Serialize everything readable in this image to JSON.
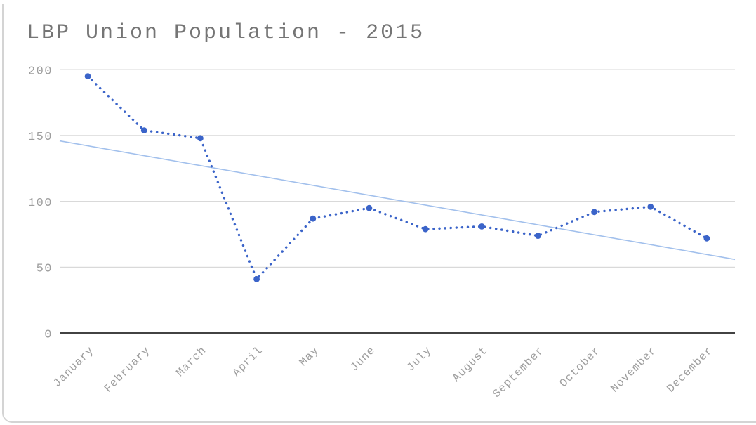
{
  "title": "LBP Union Population - 2015",
  "colors": {
    "background": "#ffffff",
    "card_border": "#d4d4d4",
    "grid": "#d9d9d9",
    "axis": "#424242",
    "tick_label": "#9e9e9e",
    "title_text": "#757575",
    "series_blue": "#3b64c9",
    "trend_blue": "#a2c0ec"
  },
  "chart_data": {
    "type": "line",
    "title": "LBP Union Population - 2015",
    "xlabel": "",
    "ylabel": "",
    "categories": [
      "January",
      "February",
      "March",
      "April",
      "May",
      "June",
      "July",
      "August",
      "September",
      "October",
      "November",
      "December"
    ],
    "series": [
      {
        "name": "Population",
        "style": "dotted",
        "color": "#3b64c9",
        "values": [
          195,
          154,
          148,
          41,
          87,
          95,
          79,
          81,
          74,
          92,
          96,
          72
        ]
      },
      {
        "name": "Trendline",
        "style": "solid",
        "color": "#a2c0ec",
        "trend": {
          "start": 146,
          "end": 56
        }
      }
    ],
    "ylim": [
      0,
      200
    ],
    "yticks": [
      0,
      50,
      100,
      150,
      200
    ],
    "grid": true,
    "legend": "none"
  }
}
